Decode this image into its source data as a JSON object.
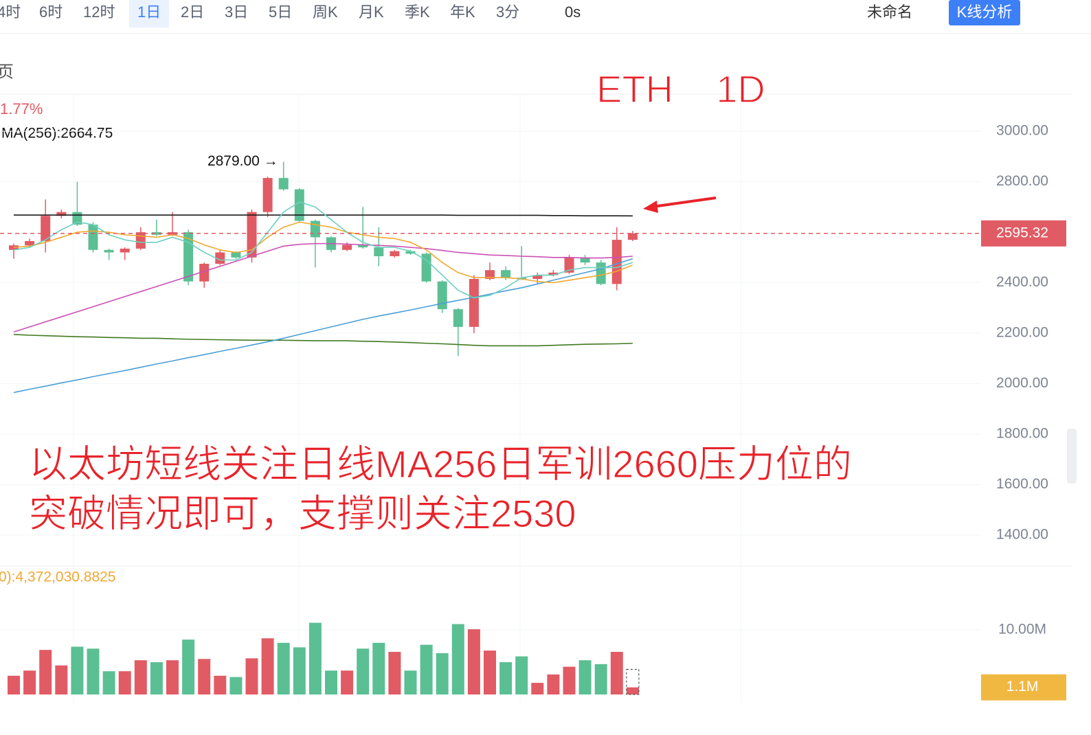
{
  "toolbar": {
    "periods": [
      "4时",
      "6时",
      "12时",
      "1日",
      "2日",
      "3日",
      "5日",
      "周K",
      "月K",
      "季K",
      "年K",
      "3分"
    ],
    "selected": "1日",
    "timer": "0s",
    "layout_name": "未命名",
    "analysis_button": "K线分析"
  },
  "panel_icon": "页",
  "legend_change": "1.77%",
  "legend_ma256": "MA(256):2664.75",
  "volume_legend": "0):4,372,030.8825",
  "overlay_title": "ETH    1D",
  "annotation_lines": [
    "以太坊短线关注日线MA256日军训2660压力位的",
    "突破情况即可，支撑则关注2530"
  ],
  "chart_data": {
    "type": "candlestick",
    "ylim": [
      1300,
      3150
    ],
    "yticks": [
      {
        "value": 1400,
        "label": "1400.00"
      },
      {
        "value": 1600,
        "label": "1600.00"
      },
      {
        "value": 1800,
        "label": "1800.00"
      },
      {
        "value": 2000,
        "label": "2000.00"
      },
      {
        "value": 2200,
        "label": "2200.00"
      },
      {
        "value": 2400,
        "label": "2400.00"
      },
      {
        "value": 2800,
        "label": "2800.00"
      },
      {
        "value": 3000,
        "label": "3000.00"
      }
    ],
    "up_color": "#e15b64",
    "down_color": "#5bbf94",
    "candles": {
      "open": [
        2530,
        2548,
        2565,
        2665,
        2680,
        2630,
        2530,
        2520,
        2535,
        2600,
        2590,
        2600,
        2405,
        2475,
        2520,
        2500,
        2680,
        2815,
        2770,
        2645,
        2580,
        2530,
        2550,
        2540,
        2505,
        2525,
        2515,
        2405,
        2295,
        2225,
        2415,
        2450,
        2420,
        2415,
        2430,
        2440,
        2500,
        2480,
        2395,
        2570
      ],
      "high": [
        2555,
        2575,
        2730,
        2690,
        2800,
        2640,
        2535,
        2540,
        2620,
        2650,
        2680,
        2610,
        2480,
        2530,
        2525,
        2690,
        2820,
        2879,
        2775,
        2650,
        2585,
        2560,
        2700,
        2620,
        2530,
        2530,
        2520,
        2410,
        2300,
        2430,
        2480,
        2465,
        2545,
        2440,
        2450,
        2510,
        2510,
        2490,
        2620,
        2605
      ],
      "low": [
        2495,
        2540,
        2520,
        2655,
        2625,
        2520,
        2490,
        2490,
        2530,
        2585,
        2585,
        2390,
        2380,
        2470,
        2495,
        2480,
        2660,
        2765,
        2640,
        2460,
        2520,
        2525,
        2535,
        2465,
        2500,
        2510,
        2400,
        2280,
        2110,
        2200,
        2410,
        2410,
        2410,
        2395,
        2425,
        2435,
        2470,
        2390,
        2370,
        2565
      ],
      "close": [
        2548,
        2565,
        2665,
        2680,
        2630,
        2530,
        2520,
        2535,
        2600,
        2590,
        2600,
        2405,
        2475,
        2520,
        2500,
        2680,
        2815,
        2770,
        2645,
        2580,
        2530,
        2550,
        2540,
        2505,
        2525,
        2515,
        2405,
        2295,
        2225,
        2415,
        2450,
        2420,
        2415,
        2430,
        2440,
        2500,
        2480,
        2395,
        2570,
        2595.32
      ]
    },
    "high_label": "2879.00 →",
    "last_price": 2595.32,
    "last_price_label": "2595.32",
    "series": [
      {
        "name": "MA256",
        "color": "#1a1a1a",
        "values": [
          2668,
          2668,
          2668,
          2668,
          2668,
          2668,
          2668,
          2668,
          2668,
          2668,
          2668,
          2668,
          2668,
          2668,
          2668,
          2668,
          2668,
          2668,
          2668,
          2668,
          2668,
          2668,
          2668,
          2668,
          2668,
          2668,
          2668,
          2668,
          2667,
          2667,
          2667,
          2667,
          2667,
          2667,
          2666,
          2666,
          2665,
          2665,
          2665,
          2664.75
        ]
      },
      {
        "name": "MA-green",
        "color": "#3f7a1f",
        "values": [
          2195,
          2192,
          2190,
          2188,
          2186,
          2185,
          2183,
          2182,
          2180,
          2180,
          2178,
          2176,
          2175,
          2174,
          2173,
          2172,
          2172,
          2172,
          2171,
          2170,
          2170,
          2170,
          2168,
          2167,
          2165,
          2163,
          2160,
          2158,
          2155,
          2152,
          2150,
          2150,
          2150,
          2150,
          2152,
          2154,
          2156,
          2157,
          2158,
          2160
        ]
      },
      {
        "name": "MA-blue",
        "color": "#4a9fd6",
        "values": [
          1965,
          1978,
          1990,
          2003,
          2015,
          2028,
          2040,
          2052,
          2065,
          2078,
          2090,
          2103,
          2115,
          2128,
          2140,
          2153,
          2166,
          2180,
          2195,
          2210,
          2225,
          2240,
          2255,
          2268,
          2280,
          2292,
          2305,
          2318,
          2330,
          2342,
          2355,
          2368,
          2380,
          2395,
          2410,
          2425,
          2440,
          2455,
          2475,
          2495
        ]
      },
      {
        "name": "MA-magenta",
        "color": "#cc4fb5",
        "values": [
          2205,
          2225,
          2245,
          2265,
          2285,
          2305,
          2325,
          2345,
          2365,
          2385,
          2405,
          2425,
          2445,
          2465,
          2485,
          2505,
          2525,
          2545,
          2552,
          2555,
          2555,
          2553,
          2550,
          2548,
          2545,
          2540,
          2535,
          2528,
          2520,
          2515,
          2510,
          2508,
          2505,
          2503,
          2500,
          2500,
          2498,
          2498,
          2500,
          2505
        ]
      },
      {
        "name": "MA-orange",
        "color": "#f0a830",
        "values": [
          2540,
          2545,
          2560,
          2580,
          2600,
          2605,
          2600,
          2590,
          2585,
          2580,
          2590,
          2575,
          2550,
          2530,
          2520,
          2530,
          2580,
          2620,
          2640,
          2630,
          2620,
          2600,
          2590,
          2580,
          2575,
          2560,
          2530,
          2480,
          2440,
          2420,
          2420,
          2420,
          2415,
          2405,
          2400,
          2410,
          2420,
          2430,
          2445,
          2470
        ]
      },
      {
        "name": "MA-cyan",
        "color": "#6ccfc0",
        "values": [
          2530,
          2540,
          2570,
          2610,
          2640,
          2630,
          2590,
          2570,
          2560,
          2560,
          2580,
          2560,
          2520,
          2490,
          2490,
          2520,
          2600,
          2680,
          2720,
          2700,
          2650,
          2600,
          2560,
          2540,
          2540,
          2525,
          2490,
          2430,
          2370,
          2340,
          2350,
          2380,
          2420,
          2430,
          2430,
          2450,
          2460,
          2460,
          2460,
          2480
        ]
      }
    ],
    "volume": {
      "values": [
        2.9,
        3.7,
        6.9,
        4.5,
        7.4,
        7.1,
        3.6,
        3.6,
        5.3,
        5.0,
        5.3,
        8.5,
        5.5,
        2.9,
        2.7,
        5.6,
        8.7,
        8.0,
        7.3,
        11.1,
        3.7,
        3.7,
        7.1,
        8.0,
        6.6,
        3.7,
        7.7,
        6.4,
        10.9,
        10.1,
        6.8,
        5.0,
        5.9,
        1.8,
        3.1,
        4.3,
        5.3,
        4.7,
        6.6,
        1.1
      ],
      "ylim": [
        0,
        12
      ],
      "yticks": [
        {
          "value": 10,
          "label": "10.00M"
        }
      ],
      "last_label": "1.1M",
      "last_label_color": "#f0b840"
    }
  }
}
